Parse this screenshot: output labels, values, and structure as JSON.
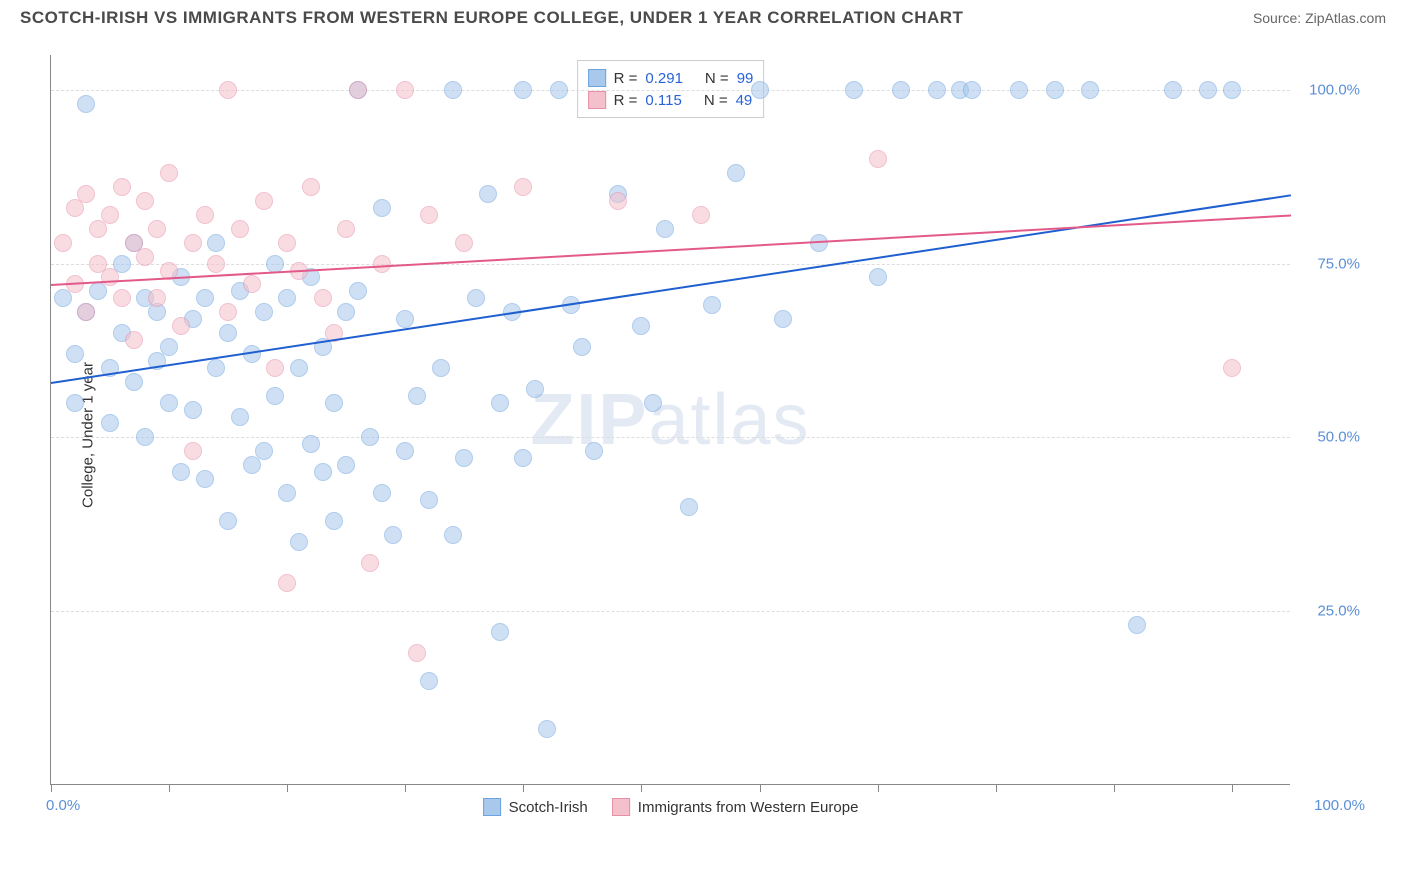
{
  "header": {
    "title": "SCOTCH-IRISH VS IMMIGRANTS FROM WESTERN EUROPE COLLEGE, UNDER 1 YEAR CORRELATION CHART",
    "source_label": "Source: ",
    "source_name": "ZipAtlas.com"
  },
  "watermark": {
    "zip": "ZIP",
    "atlas": "atlas"
  },
  "chart": {
    "type": "scatter",
    "ylabel": "College, Under 1 year",
    "xlim": [
      0,
      105
    ],
    "ylim": [
      0,
      105
    ],
    "x_axis": {
      "tick_positions": [
        0,
        10,
        20,
        30,
        40,
        50,
        60,
        70,
        80,
        90,
        100
      ],
      "label_left": "0.0%",
      "label_right": "100.0%"
    },
    "y_axis": {
      "gridlines": [
        25,
        50,
        75,
        100
      ],
      "labels": [
        "25.0%",
        "50.0%",
        "75.0%",
        "100.0%"
      ]
    },
    "grid_color": "#dddddd",
    "axis_color": "#888888",
    "tick_label_color": "#5b8fd6",
    "background_color": "#ffffff",
    "point_radius": 9,
    "point_opacity": 0.55,
    "series": [
      {
        "name": "Scotch-Irish",
        "color_fill": "#a8c8ec",
        "color_stroke": "#6ea3e0",
        "trend_color": "#1f5fd0",
        "R": "0.291",
        "N": "99",
        "trend": {
          "x1": 0,
          "y1": 58,
          "x2": 105,
          "y2": 85
        },
        "points": [
          [
            1,
            70
          ],
          [
            2,
            62
          ],
          [
            2,
            55
          ],
          [
            3,
            68
          ],
          [
            3,
            98
          ],
          [
            4,
            71
          ],
          [
            5,
            60
          ],
          [
            5,
            52
          ],
          [
            6,
            65
          ],
          [
            6,
            75
          ],
          [
            7,
            78
          ],
          [
            7,
            58
          ],
          [
            8,
            70
          ],
          [
            8,
            50
          ],
          [
            9,
            61
          ],
          [
            9,
            68
          ],
          [
            10,
            63
          ],
          [
            10,
            55
          ],
          [
            11,
            73
          ],
          [
            11,
            45
          ],
          [
            12,
            67
          ],
          [
            12,
            54
          ],
          [
            13,
            70
          ],
          [
            13,
            44
          ],
          [
            14,
            60
          ],
          [
            14,
            78
          ],
          [
            15,
            65
          ],
          [
            15,
            38
          ],
          [
            16,
            53
          ],
          [
            16,
            71
          ],
          [
            17,
            46
          ],
          [
            17,
            62
          ],
          [
            18,
            68
          ],
          [
            18,
            48
          ],
          [
            19,
            56
          ],
          [
            19,
            75
          ],
          [
            20,
            70
          ],
          [
            20,
            42
          ],
          [
            21,
            60
          ],
          [
            21,
            35
          ],
          [
            22,
            49
          ],
          [
            22,
            73
          ],
          [
            23,
            45
          ],
          [
            23,
            63
          ],
          [
            24,
            55
          ],
          [
            24,
            38
          ],
          [
            25,
            68
          ],
          [
            25,
            46
          ],
          [
            26,
            71
          ],
          [
            26,
            100
          ],
          [
            27,
            50
          ],
          [
            28,
            42
          ],
          [
            28,
            83
          ],
          [
            29,
            36
          ],
          [
            30,
            48
          ],
          [
            30,
            67
          ],
          [
            31,
            56
          ],
          [
            32,
            15
          ],
          [
            32,
            41
          ],
          [
            33,
            60
          ],
          [
            34,
            100
          ],
          [
            34,
            36
          ],
          [
            35,
            47
          ],
          [
            36,
            70
          ],
          [
            37,
            85
          ],
          [
            38,
            55
          ],
          [
            38,
            22
          ],
          [
            39,
            68
          ],
          [
            40,
            47
          ],
          [
            40,
            100
          ],
          [
            41,
            57
          ],
          [
            42,
            8
          ],
          [
            43,
            100
          ],
          [
            44,
            69
          ],
          [
            45,
            63
          ],
          [
            46,
            48
          ],
          [
            48,
            85
          ],
          [
            50,
            66
          ],
          [
            51,
            55
          ],
          [
            52,
            80
          ],
          [
            54,
            40
          ],
          [
            56,
            69
          ],
          [
            58,
            88
          ],
          [
            60,
            100
          ],
          [
            62,
            67
          ],
          [
            65,
            78
          ],
          [
            68,
            100
          ],
          [
            70,
            73
          ],
          [
            72,
            100
          ],
          [
            75,
            100
          ],
          [
            77,
            100
          ],
          [
            78,
            100
          ],
          [
            82,
            100
          ],
          [
            85,
            100
          ],
          [
            88,
            100
          ],
          [
            92,
            23
          ],
          [
            95,
            100
          ],
          [
            98,
            100
          ],
          [
            100,
            100
          ]
        ]
      },
      {
        "name": "Immigrants from Western Europe",
        "color_fill": "#f3c0cc",
        "color_stroke": "#e88fa8",
        "trend_color": "#e35a8a",
        "R": "0.115",
        "N": "49",
        "trend": {
          "x1": 0,
          "y1": 72,
          "x2": 105,
          "y2": 82
        },
        "points": [
          [
            1,
            78
          ],
          [
            2,
            83
          ],
          [
            2,
            72
          ],
          [
            3,
            85
          ],
          [
            3,
            68
          ],
          [
            4,
            80
          ],
          [
            4,
            75
          ],
          [
            5,
            73
          ],
          [
            5,
            82
          ],
          [
            6,
            70
          ],
          [
            6,
            86
          ],
          [
            7,
            78
          ],
          [
            7,
            64
          ],
          [
            8,
            76
          ],
          [
            8,
            84
          ],
          [
            9,
            80
          ],
          [
            9,
            70
          ],
          [
            10,
            74
          ],
          [
            10,
            88
          ],
          [
            11,
            66
          ],
          [
            12,
            78
          ],
          [
            12,
            48
          ],
          [
            13,
            82
          ],
          [
            14,
            75
          ],
          [
            15,
            68
          ],
          [
            15,
            100
          ],
          [
            16,
            80
          ],
          [
            17,
            72
          ],
          [
            18,
            84
          ],
          [
            19,
            60
          ],
          [
            20,
            29
          ],
          [
            20,
            78
          ],
          [
            21,
            74
          ],
          [
            22,
            86
          ],
          [
            23,
            70
          ],
          [
            24,
            65
          ],
          [
            25,
            80
          ],
          [
            26,
            100
          ],
          [
            27,
            32
          ],
          [
            28,
            75
          ],
          [
            30,
            100
          ],
          [
            31,
            19
          ],
          [
            32,
            82
          ],
          [
            35,
            78
          ],
          [
            40,
            86
          ],
          [
            48,
            84
          ],
          [
            55,
            82
          ],
          [
            70,
            90
          ],
          [
            100,
            60
          ]
        ]
      }
    ],
    "legend_top": {
      "r_label": "R =",
      "n_label": "N ="
    },
    "legend_bottom": [
      "Scotch-Irish",
      "Immigrants from Western Europe"
    ]
  }
}
